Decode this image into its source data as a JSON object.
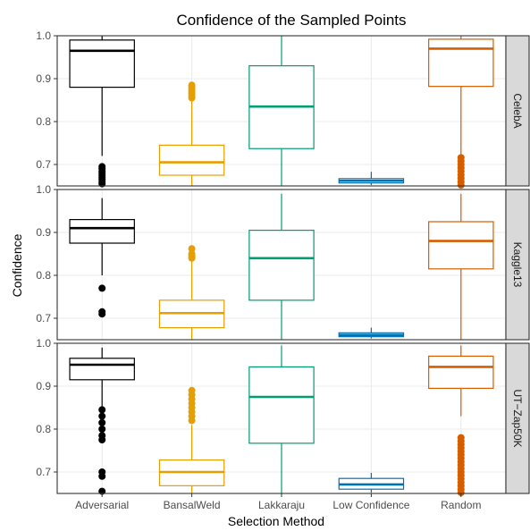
{
  "chart_data": {
    "type": "boxplot",
    "title": "Confidence of the Sampled Points",
    "xlabel": "Selection Method",
    "ylabel": "Confidence",
    "categories": [
      "Adversarial",
      "BansalWeld",
      "Lakkaraju",
      "Low Confidence",
      "Random"
    ],
    "colors": [
      "#000000",
      "#E69F00",
      "#009E73",
      "#0072B2",
      "#D55E00"
    ],
    "ylim": [
      0.65,
      1.0
    ],
    "yticks": [
      0.7,
      0.8,
      0.9,
      1.0
    ],
    "ytick_labels": [
      "0.7",
      "0.8",
      "0.9",
      "1.0"
    ],
    "grid": true,
    "facets": [
      {
        "label": "CelebA",
        "boxes": [
          {
            "whisker_low": 0.72,
            "q1": 0.88,
            "median": 0.965,
            "q3": 0.99,
            "whisker_high": 1.0,
            "outliers": [
              0.655,
              0.66,
              0.665,
              0.67,
              0.675,
              0.68,
              0.685,
              0.69,
              0.695
            ]
          },
          {
            "whisker_low": 0.65,
            "q1": 0.675,
            "median": 0.705,
            "q3": 0.745,
            "whisker_high": 0.85,
            "outliers": [
              0.855,
              0.86,
              0.865,
              0.87,
              0.875,
              0.88,
              0.885
            ]
          },
          {
            "whisker_low": 0.65,
            "q1": 0.737,
            "median": 0.835,
            "q3": 0.93,
            "whisker_high": 1.0,
            "outliers": []
          },
          {
            "whisker_low": 0.652,
            "q1": 0.657,
            "median": 0.662,
            "q3": 0.667,
            "whisker_high": 0.683,
            "outliers": []
          },
          {
            "whisker_low": 0.72,
            "q1": 0.882,
            "median": 0.97,
            "q3": 0.992,
            "whisker_high": 1.0,
            "outliers": [
              0.652,
              0.66,
              0.668,
              0.676,
              0.684,
              0.692,
              0.7,
              0.708,
              0.716
            ]
          }
        ]
      },
      {
        "label": "Kaggle13",
        "boxes": [
          {
            "whisker_low": 0.8,
            "q1": 0.875,
            "median": 0.91,
            "q3": 0.93,
            "whisker_high": 0.98,
            "outliers": [
              0.71,
              0.715,
              0.77
            ]
          },
          {
            "whisker_low": 0.65,
            "q1": 0.678,
            "median": 0.712,
            "q3": 0.742,
            "whisker_high": 0.835,
            "outliers": [
              0.84,
              0.845,
              0.85,
              0.862
            ]
          },
          {
            "whisker_low": 0.65,
            "q1": 0.742,
            "median": 0.84,
            "q3": 0.905,
            "whisker_high": 0.99,
            "outliers": []
          },
          {
            "whisker_low": 0.653,
            "q1": 0.657,
            "median": 0.661,
            "q3": 0.666,
            "whisker_high": 0.678,
            "outliers": []
          },
          {
            "whisker_low": 0.65,
            "q1": 0.815,
            "median": 0.88,
            "q3": 0.925,
            "whisker_high": 0.99,
            "outliers": []
          }
        ]
      },
      {
        "label": "UT−Zap50K",
        "boxes": [
          {
            "whisker_low": 0.85,
            "q1": 0.915,
            "median": 0.95,
            "q3": 0.965,
            "whisker_high": 0.99,
            "outliers": [
              0.655,
              0.69,
              0.7,
              0.775,
              0.785,
              0.8,
              0.815,
              0.83,
              0.845
            ]
          },
          {
            "whisker_low": 0.65,
            "q1": 0.668,
            "median": 0.7,
            "q3": 0.728,
            "whisker_high": 0.81,
            "outliers": [
              0.82,
              0.83,
              0.84,
              0.85,
              0.86,
              0.87,
              0.88,
              0.89
            ]
          },
          {
            "whisker_low": 0.65,
            "q1": 0.767,
            "median": 0.875,
            "q3": 0.945,
            "whisker_high": 0.995,
            "outliers": []
          },
          {
            "whisker_low": 0.652,
            "q1": 0.66,
            "median": 0.671,
            "q3": 0.685,
            "whisker_high": 0.698,
            "outliers": []
          },
          {
            "whisker_low": 0.83,
            "q1": 0.895,
            "median": 0.945,
            "q3": 0.97,
            "whisker_high": 0.995,
            "outliers": [
              0.652,
              0.66,
              0.668,
              0.676,
              0.684,
              0.692,
              0.7,
              0.708,
              0.716,
              0.724,
              0.732,
              0.74,
              0.748,
              0.756,
              0.764,
              0.772,
              0.78
            ]
          }
        ]
      }
    ]
  }
}
